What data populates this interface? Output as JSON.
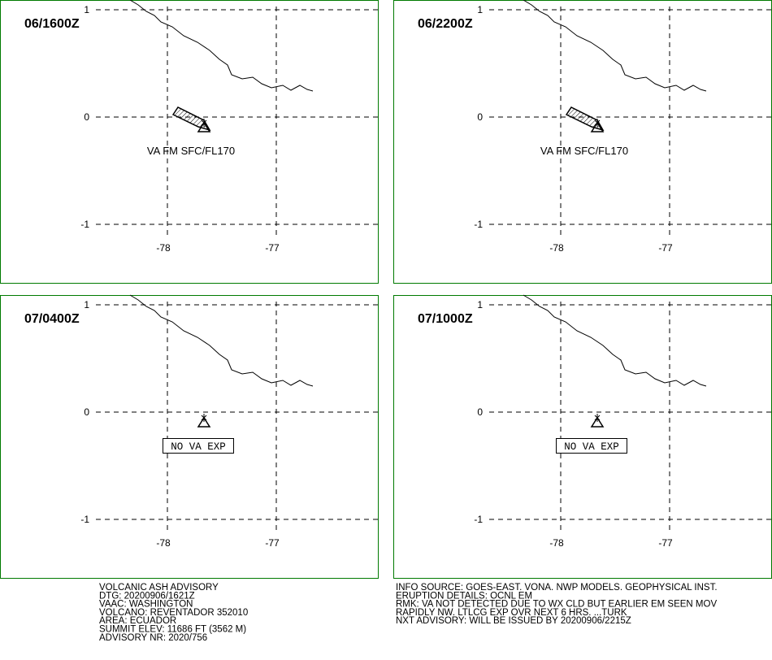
{
  "panels": [
    {
      "time": "06/1600Z",
      "label": "VA FM SFC/FL170",
      "ash_plume": true
    },
    {
      "time": "06/2200Z",
      "label": "VA FM SFC/FL170",
      "ash_plume": true
    },
    {
      "time": "07/0400Z",
      "label": "NO VA EXP",
      "ash_plume": false
    },
    {
      "time": "07/1000Z",
      "label": "NO VA EXP",
      "ash_plume": false
    }
  ],
  "lat_ticks": [
    1,
    0,
    -1
  ],
  "lon_ticks": [
    -78,
    -77
  ],
  "advisory_left": [
    "VOLCANIC ASH ADVISORY",
    "DTG: 20200906/1621Z",
    "VAAC: WASHINGTON",
    "VOLCANO: REVENTADOR 352010",
    "AREA: ECUADOR",
    "SUMMIT ELEV: 11686 FT (3562 M)",
    "ADVISORY NR: 2020/756"
  ],
  "advisory_right": [
    "INFO SOURCE: GOES-EAST. VONA. NWP MODELS. GEOPHYSICAL INST.",
    "ERUPTION DETAILS: OCNL EM",
    "RMK: VA NOT DETECTED DUE TO WX CLD BUT EARLIER EM SEEN MOV",
    "RAPIDLY NW. LTLCG EXP OVR NEXT 6 HRS. ...TURK",
    "NXT ADVISORY: WILL BE ISSUED BY 20200906/2215Z"
  ]
}
